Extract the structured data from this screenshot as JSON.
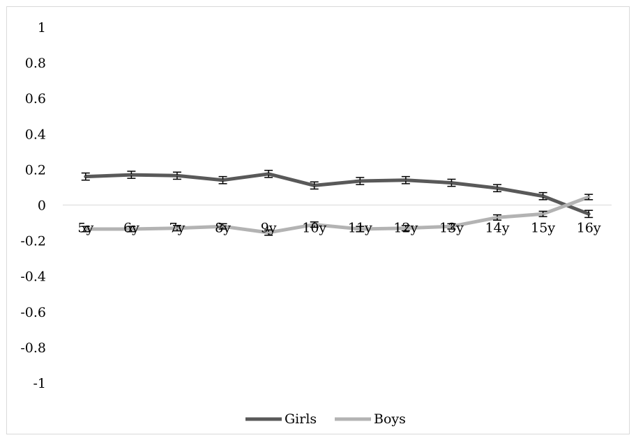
{
  "chart_data": {
    "type": "line",
    "title": "",
    "xlabel": "",
    "ylabel": "",
    "categories": [
      "5y",
      "6y",
      "7y",
      "8y",
      "9y",
      "10y",
      "11y",
      "12y",
      "13y",
      "14y",
      "15y",
      "16y"
    ],
    "ylim": [
      -1,
      1
    ],
    "yticks": [
      "1",
      "0.8",
      "0.6",
      "0.4",
      "0.2",
      "0",
      "-0.2",
      "-0.4",
      "-0.6",
      "-0.8",
      "-1"
    ],
    "ytick_values": [
      1,
      0.8,
      0.6,
      0.4,
      0.2,
      0,
      -0.2,
      -0.4,
      -0.6,
      -0.8,
      -1
    ],
    "grid": false,
    "legend_position": "bottom",
    "error_bars": true,
    "series": [
      {
        "name": "Girls",
        "color": "#595959",
        "values": [
          0.16,
          0.17,
          0.165,
          0.14,
          0.175,
          0.11,
          0.135,
          0.14,
          0.125,
          0.095,
          0.05,
          -0.05
        ],
        "errors": [
          0.02,
          0.02,
          0.02,
          0.02,
          0.02,
          0.02,
          0.02,
          0.02,
          0.02,
          0.02,
          0.02,
          0.02
        ]
      },
      {
        "name": "Boys",
        "color": "#b3b3b3",
        "values": [
          -0.135,
          -0.135,
          -0.13,
          -0.12,
          -0.155,
          -0.11,
          -0.135,
          -0.13,
          -0.12,
          -0.07,
          -0.05,
          0.045
        ],
        "errors": [
          0.015,
          0.015,
          0.015,
          0.015,
          0.015,
          0.015,
          0.015,
          0.015,
          0.015,
          0.015,
          0.015,
          0.015
        ]
      }
    ]
  }
}
